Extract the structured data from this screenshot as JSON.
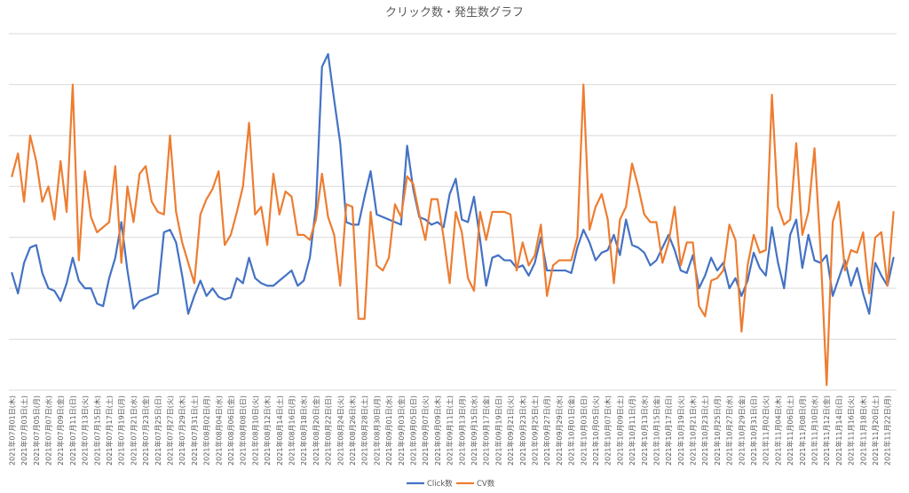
{
  "chart_data": {
    "type": "line",
    "title": "クリック数・発生数グラフ",
    "xlabel": "",
    "ylabel": "",
    "ylim": [
      0,
      7
    ],
    "grid": true,
    "legend_position": "bottom",
    "x": [
      "2021年07月01日(木)",
      "2021年07月02日(金)",
      "2021年07月03日(土)",
      "2021年07月04日(日)",
      "2021年07月05日(月)",
      "2021年07月06日(火)",
      "2021年07月07日(水)",
      "2021年07月08日(木)",
      "2021年07月09日(金)",
      "2021年07月10日(土)",
      "2021年07月11日(日)",
      "2021年07月12日(月)",
      "2021年07月13日(火)",
      "2021年07月14日(水)",
      "2021年07月15日(木)",
      "2021年07月16日(金)",
      "2021年07月17日(土)",
      "2021年07月18日(日)",
      "2021年07月19日(月)",
      "2021年07月20日(火)",
      "2021年07月21日(水)",
      "2021年07月22日(木)",
      "2021年07月23日(金)",
      "2021年07月24日(土)",
      "2021年07月25日(日)",
      "2021年07月26日(月)",
      "2021年07月27日(火)",
      "2021年07月28日(水)",
      "2021年07月29日(木)",
      "2021年07月30日(金)",
      "2021年07月31日(土)",
      "2021年08月01日(日)",
      "2021年08月02日(月)",
      "2021年08月03日(火)",
      "2021年08月04日(水)",
      "2021年08月05日(木)",
      "2021年08月06日(金)",
      "2021年08月07日(土)",
      "2021年08月08日(日)",
      "2021年08月09日(月)",
      "2021年08月10日(火)",
      "2021年08月11日(水)",
      "2021年08月12日(木)",
      "2021年08月13日(金)",
      "2021年08月14日(土)",
      "2021年08月15日(日)",
      "2021年08月16日(月)",
      "2021年08月17日(火)",
      "2021年08月18日(水)",
      "2021年08月19日(木)",
      "2021年08月20日(金)",
      "2021年08月21日(土)",
      "2021年08月22日(日)",
      "2021年08月23日(月)",
      "2021年08月24日(火)",
      "2021年08月25日(水)",
      "2021年08月26日(木)",
      "2021年08月27日(金)",
      "2021年08月28日(土)",
      "2021年08月29日(日)",
      "2021年08月30日(月)",
      "2021年08月31日(火)",
      "2021年09月01日(水)",
      "2021年09月02日(木)",
      "2021年09月03日(金)",
      "2021年09月04日(土)",
      "2021年09月05日(日)",
      "2021年09月06日(月)",
      "2021年09月07日(火)",
      "2021年09月08日(水)",
      "2021年09月09日(木)",
      "2021年09月10日(金)",
      "2021年09月11日(土)",
      "2021年09月12日(日)",
      "2021年09月13日(月)",
      "2021年09月14日(火)",
      "2021年09月15日(水)",
      "2021年09月16日(木)",
      "2021年09月17日(金)",
      "2021年09月18日(土)",
      "2021年09月19日(日)",
      "2021年09月20日(月)",
      "2021年09月21日(火)",
      "2021年09月22日(水)",
      "2021年09月23日(木)",
      "2021年09月24日(金)",
      "2021年09月25日(土)",
      "2021年09月26日(日)",
      "2021年09月27日(月)",
      "2021年09月28日(火)",
      "2021年09月29日(水)",
      "2021年09月30日(木)",
      "2021年10月01日(金)",
      "2021年10月02日(土)",
      "2021年10月03日(日)",
      "2021年10月04日(月)",
      "2021年10月05日(火)",
      "2021年10月06日(水)",
      "2021年10月07日(木)",
      "2021年10月08日(金)",
      "2021年10月09日(土)",
      "2021年10月10日(日)",
      "2021年10月11日(月)",
      "2021年10月12日(火)",
      "2021年10月13日(水)",
      "2021年10月14日(木)",
      "2021年10月15日(金)",
      "2021年10月16日(土)",
      "2021年10月17日(日)",
      "2021年10月18日(月)",
      "2021年10月19日(火)",
      "2021年10月20日(水)",
      "2021年10月21日(木)",
      "2021年10月22日(金)",
      "2021年10月23日(土)",
      "2021年10月24日(日)",
      "2021年10月25日(月)",
      "2021年10月26日(火)",
      "2021年10月27日(水)",
      "2021年10月28日(木)",
      "2021年10月29日(金)",
      "2021年10月30日(土)",
      "2021年10月31日(日)",
      "2021年11月01日(月)",
      "2021年11月02日(火)",
      "2021年11月03日(水)",
      "2021年11月04日(木)",
      "2021年11月05日(金)",
      "2021年11月06日(土)",
      "2021年11月07日(日)",
      "2021年11月08日(月)",
      "2021年11月09日(火)",
      "2021年11月10日(水)",
      "2021年11月11日(木)",
      "2021年11月12日(金)",
      "2021年11月13日(土)",
      "2021年11月14日(日)",
      "2021年11月15日(月)",
      "2021年11月16日(火)",
      "2021年11月17日(水)",
      "2021年11月18日(木)",
      "2021年11月19日(金)",
      "2021年11月20日(土)",
      "2021年11月21日(日)",
      "2021年11月22日(月)",
      "2021年11月23日(火)"
    ],
    "tick_labels": [
      "2021年07月01日(木)",
      "2021年07月03日(土)",
      "2021年07月05日(月)",
      "2021年07月07日(水)",
      "2021年07月09日(金)",
      "2021年07月11日(日)",
      "2021年07月13日(火)",
      "2021年07月15日(木)",
      "2021年07月17日(土)",
      "2021年07月19日(月)",
      "2021年07月21日(水)",
      "2021年07月23日(金)",
      "2021年07月25日(日)",
      "2021年07月27日(火)",
      "2021年07月29日(木)",
      "2021年07月31日(土)",
      "2021年08月02日(月)",
      "2021年08月04日(水)",
      "2021年08月06日(金)",
      "2021年08月08日(日)",
      "2021年08月10日(火)",
      "2021年08月12日(木)",
      "2021年08月14日(土)",
      "2021年08月16日(月)",
      "2021年08月18日(水)",
      "2021年08月20日(金)",
      "2021年08月22日(日)",
      "2021年08月24日(火)",
      "2021年08月26日(木)",
      "2021年08月28日(土)",
      "2021年08月30日(月)",
      "2021年09月01日(水)",
      "2021年09月03日(金)",
      "2021年09月05日(日)",
      "2021年09月07日(火)",
      "2021年09月09日(木)",
      "2021年09月11日(土)",
      "2021年09月13日(月)",
      "2021年09月15日(水)",
      "2021年09月17日(金)",
      "2021年09月19日(日)",
      "2021年09月21日(火)",
      "2021年09月23日(木)",
      "2021年09月25日(土)",
      "2021年09月27日(月)",
      "2021年09月29日(水)",
      "2021年10月01日(金)",
      "2021年10月03日(日)",
      "2021年10月05日(火)",
      "2021年10月07日(木)",
      "2021年10月09日(土)",
      "2021年10月11日(月)",
      "2021年10月13日(水)",
      "2021年10月15日(金)",
      "2021年10月17日(日)",
      "2021年10月19日(火)",
      "2021年10月21日(木)",
      "2021年10月23日(土)",
      "2021年10月25日(月)",
      "2021年10月27日(水)",
      "2021年10月29日(金)",
      "2021年10月31日(日)",
      "2021年11月02日(火)",
      "2021年11月04日(木)",
      "2021年11月06日(土)",
      "2021年11月08日(月)",
      "2021年11月10日(水)",
      "2021年11月12日(金)",
      "2021年11月14日(日)",
      "2021年11月16日(火)",
      "2021年11月18日(木)",
      "2021年11月20日(土)",
      "2021年11月22日(月)"
    ],
    "series": [
      {
        "name": "Click数",
        "color": "#4472C4",
        "values": [
          2.3,
          1.9,
          2.5,
          2.8,
          2.85,
          2.3,
          2.0,
          1.95,
          1.75,
          2.1,
          2.6,
          2.15,
          2.0,
          2.0,
          1.7,
          1.65,
          2.2,
          2.6,
          3.3,
          2.35,
          1.6,
          1.75,
          1.8,
          1.85,
          1.9,
          3.1,
          3.15,
          2.9,
          2.25,
          1.5,
          1.85,
          2.15,
          1.85,
          2.0,
          1.83,
          1.78,
          1.82,
          2.2,
          2.1,
          2.6,
          2.2,
          2.1,
          2.05,
          2.05,
          2.15,
          2.25,
          2.35,
          2.05,
          2.15,
          2.6,
          3.6,
          6.35,
          6.6,
          5.7,
          4.85,
          3.3,
          3.25,
          3.25,
          3.8,
          4.3,
          3.45,
          3.4,
          3.35,
          3.3,
          3.25,
          4.8,
          3.95,
          3.4,
          3.35,
          3.25,
          3.3,
          3.2,
          3.85,
          4.15,
          3.35,
          3.3,
          3.8,
          2.95,
          2.05,
          2.6,
          2.65,
          2.55,
          2.55,
          2.4,
          2.45,
          2.25,
          2.5,
          3.0,
          2.35,
          2.35,
          2.35,
          2.35,
          2.3,
          2.8,
          3.15,
          2.9,
          2.55,
          2.7,
          2.75,
          3.05,
          2.65,
          3.35,
          2.85,
          2.8,
          2.7,
          2.45,
          2.55,
          2.8,
          3.05,
          2.75,
          2.35,
          2.3,
          2.65,
          2.0,
          2.25,
          2.6,
          2.35,
          2.5,
          2.0,
          2.2,
          1.85,
          2.15,
          2.7,
          2.4,
          2.25,
          3.2,
          2.5,
          2.0,
          3.05,
          3.35,
          2.4,
          3.05,
          2.55,
          2.5,
          2.65,
          1.85,
          2.2,
          2.55,
          2.05,
          2.4,
          1.9,
          1.5,
          2.5,
          2.25,
          2.05,
          2.6
        ]
      },
      {
        "name": "CV数",
        "color": "#ED7D31",
        "values": [
          4.2,
          4.65,
          3.7,
          5.0,
          4.5,
          3.7,
          4.0,
          3.35,
          4.5,
          3.5,
          6.0,
          2.55,
          4.3,
          3.4,
          3.1,
          3.2,
          3.3,
          4.4,
          2.5,
          4.0,
          3.3,
          4.25,
          4.4,
          3.7,
          3.5,
          3.45,
          5.0,
          3.5,
          2.9,
          2.5,
          2.1,
          3.45,
          3.75,
          3.95,
          4.3,
          2.85,
          3.05,
          3.5,
          4.0,
          5.25,
          3.45,
          3.6,
          2.85,
          4.25,
          3.45,
          3.9,
          3.8,
          3.05,
          3.05,
          2.95,
          3.35,
          4.25,
          3.4,
          3.05,
          2.05,
          3.65,
          3.6,
          1.4,
          1.4,
          3.5,
          2.45,
          2.35,
          2.6,
          3.65,
          3.4,
          4.2,
          4.05,
          3.45,
          2.95,
          3.75,
          3.75,
          3.0,
          2.1,
          3.5,
          3.1,
          2.2,
          1.95,
          3.5,
          2.95,
          3.5,
          3.5,
          3.5,
          3.45,
          2.35,
          2.9,
          2.45,
          2.65,
          3.25,
          1.85,
          2.45,
          2.55,
          2.55,
          2.55,
          3.0,
          6.0,
          3.15,
          3.6,
          3.85,
          3.35,
          2.1,
          3.35,
          3.6,
          4.45,
          4.0,
          3.45,
          3.3,
          3.3,
          2.5,
          2.9,
          3.6,
          2.45,
          2.9,
          2.9,
          1.65,
          1.45,
          2.15,
          2.2,
          2.35,
          3.25,
          2.95,
          1.15,
          2.45,
          3.05,
          2.7,
          2.75,
          5.8,
          3.6,
          3.25,
          3.35,
          4.85,
          3.05,
          3.5,
          4.75,
          2.75,
          0.1,
          3.3,
          3.7,
          2.35,
          2.75,
          2.7,
          3.1,
          1.9,
          3.0,
          3.1,
          2.05,
          3.5
        ]
      }
    ]
  }
}
